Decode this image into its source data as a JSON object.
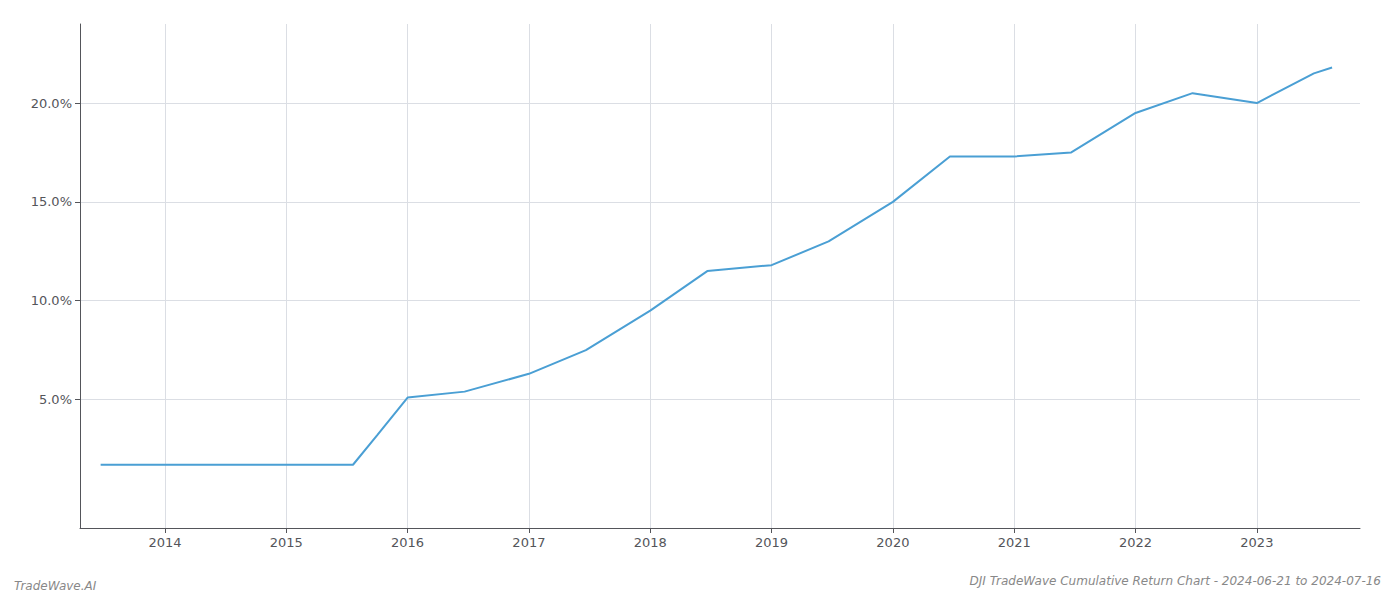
{
  "chart_data": {
    "type": "line",
    "title": "DJI TradeWave Cumulative Return Chart - 2024-06-21 to 2024-07-16",
    "annotations": [
      "TradeWave.AI"
    ],
    "x": [
      2013.47,
      2014.0,
      2014.47,
      2015.0,
      2015.47,
      2015.55,
      2015.75,
      2016.0,
      2016.47,
      2017.0,
      2017.47,
      2018.0,
      2018.47,
      2019.0,
      2019.47,
      2020.0,
      2020.47,
      2021.0,
      2021.47,
      2022.0,
      2022.47,
      2023.0,
      2023.47,
      2023.62
    ],
    "values": [
      1.7,
      1.7,
      1.7,
      1.7,
      1.7,
      1.7,
      3.2,
      5.1,
      5.4,
      6.3,
      7.5,
      9.5,
      11.5,
      11.8,
      13.0,
      15.0,
      17.3,
      17.3,
      17.5,
      19.5,
      20.5,
      20.0,
      21.5,
      21.8
    ],
    "color": "#4a9fd4",
    "xlim": [
      2013.3,
      2023.85
    ],
    "ylim": [
      -1.5,
      24
    ],
    "xticks": [
      2014,
      2015,
      2016,
      2017,
      2018,
      2019,
      2020,
      2021,
      2022,
      2023
    ],
    "yticks": [
      {
        "value": 5.0,
        "label": "5.0%"
      },
      {
        "value": 10.0,
        "label": "10.0%"
      },
      {
        "value": 15.0,
        "label": "15.0%"
      },
      {
        "value": 20.0,
        "label": "20.0%"
      }
    ],
    "grid": true
  }
}
